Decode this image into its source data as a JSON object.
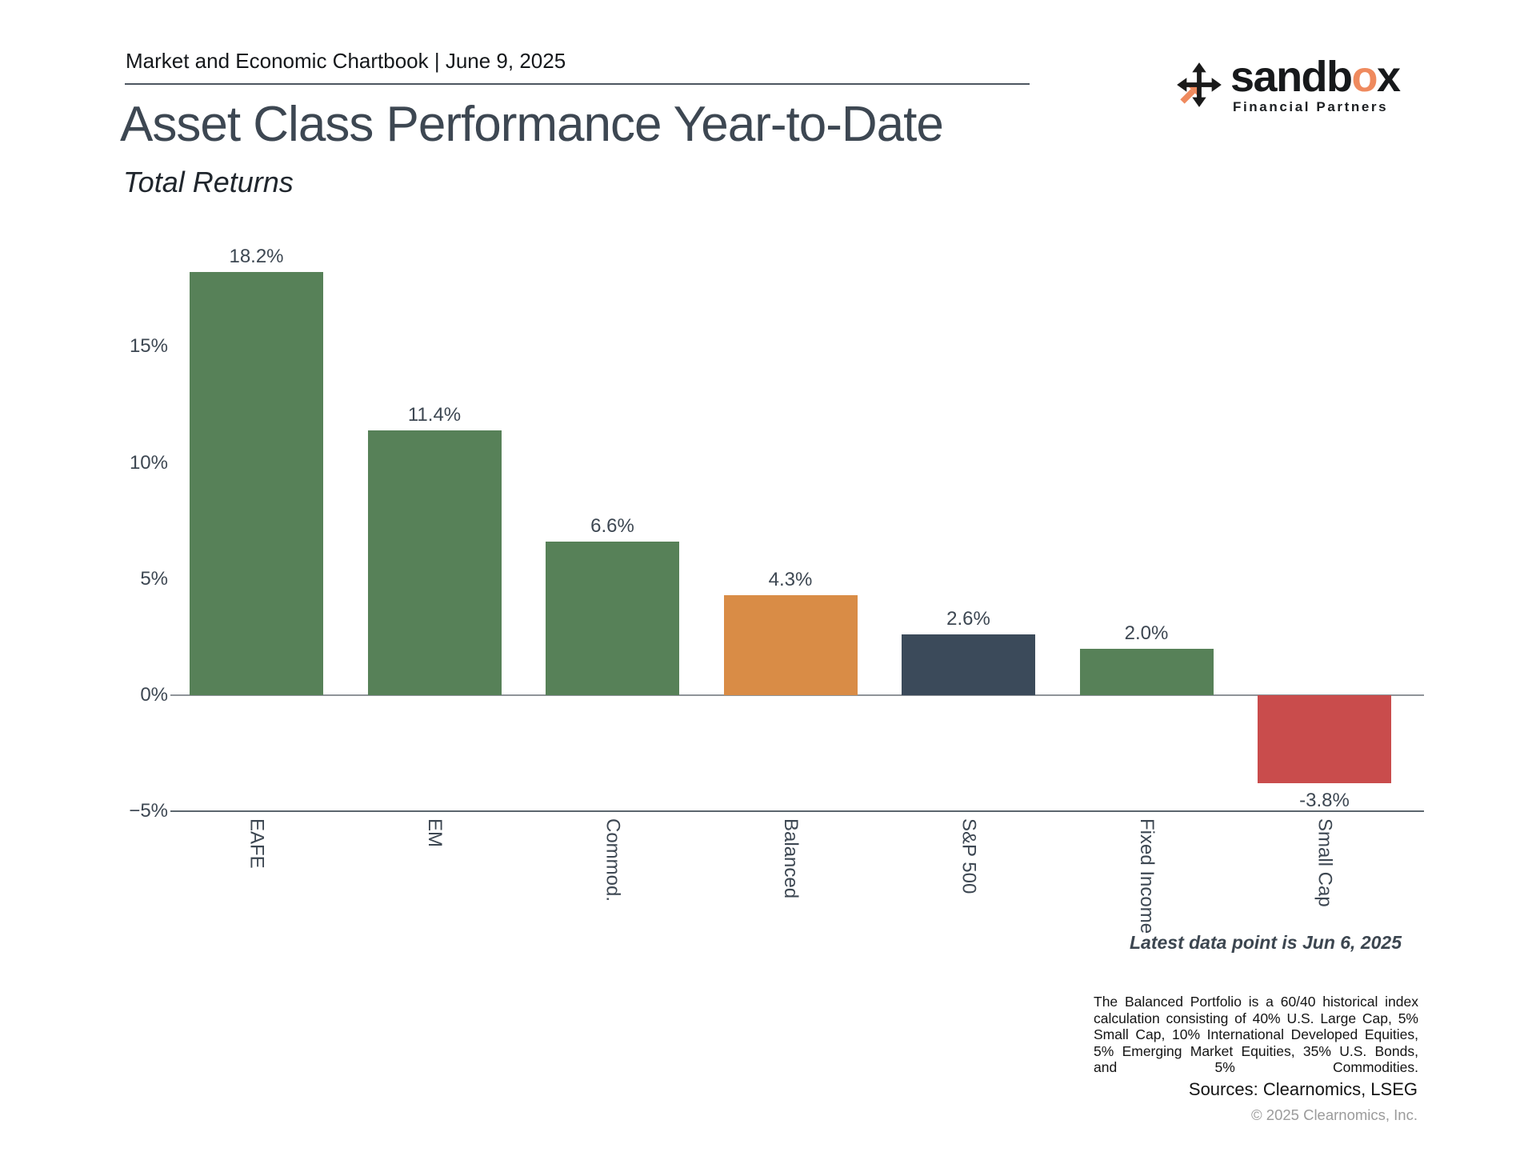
{
  "header": {
    "eyebrow": "Market and Economic Chartbook | June 9, 2025",
    "title": "Asset Class Performance Year-to-Date",
    "subtitle": "Total Returns"
  },
  "logo": {
    "brand_prefix": "sandb",
    "brand_accent": "o",
    "brand_suffix": "x",
    "tagline": "Financial Partners",
    "accent_color": "#EF8A5E",
    "icon_color": "#1a1a1a",
    "icon": "move-cross-icon"
  },
  "chart_data": {
    "type": "bar",
    "title": "Asset Class Performance Year-to-Date",
    "subtitle": "Total Returns",
    "categories": [
      "EAFE",
      "EM",
      "Commod.",
      "Balanced",
      "S&P 500",
      "Fixed Income",
      "Small Cap"
    ],
    "values": [
      18.2,
      11.4,
      6.6,
      4.3,
      2.6,
      2.0,
      -3.8
    ],
    "value_labels": [
      "18.2%",
      "11.4%",
      "6.6%",
      "4.3%",
      "2.6%",
      "2.0%",
      "-3.8%"
    ],
    "bar_colors": [
      "#578158",
      "#578158",
      "#578158",
      "#D98C46",
      "#3B4A5A",
      "#578158",
      "#C94C4C"
    ],
    "color_legend": {
      "green": "#578158",
      "orange_balanced": "#D98C46",
      "navy_sp500": "#3B4A5A",
      "red_negative": "#C94C4C"
    },
    "xlabel": "",
    "ylabel": "",
    "ylim": [
      -5,
      19
    ],
    "yticks": [
      {
        "label": "15%",
        "value": 15
      },
      {
        "label": "10%",
        "value": 10
      },
      {
        "label": "5%",
        "value": 5
      },
      {
        "label": "0%",
        "value": 0
      },
      {
        "label": "−5%",
        "value": -5
      }
    ],
    "grid": "baseline at 0% and bottom axis at -5% only",
    "legend_position": "none"
  },
  "annotations": {
    "latest_note": "Latest data point is Jun 6, 2025"
  },
  "footer": {
    "disclaimer": "The Balanced Portfolio is a 60/40 historical index calculation consisting of 40% U.S. Large Cap, 5% Small Cap, 10% International Developed Equities, 5% Emerging Market Equities, 35% U.S. Bonds, and 5% Commodities.",
    "sources": "Sources: Clearnomics, LSEG",
    "copyright": "© 2025 Clearnomics, Inc."
  }
}
